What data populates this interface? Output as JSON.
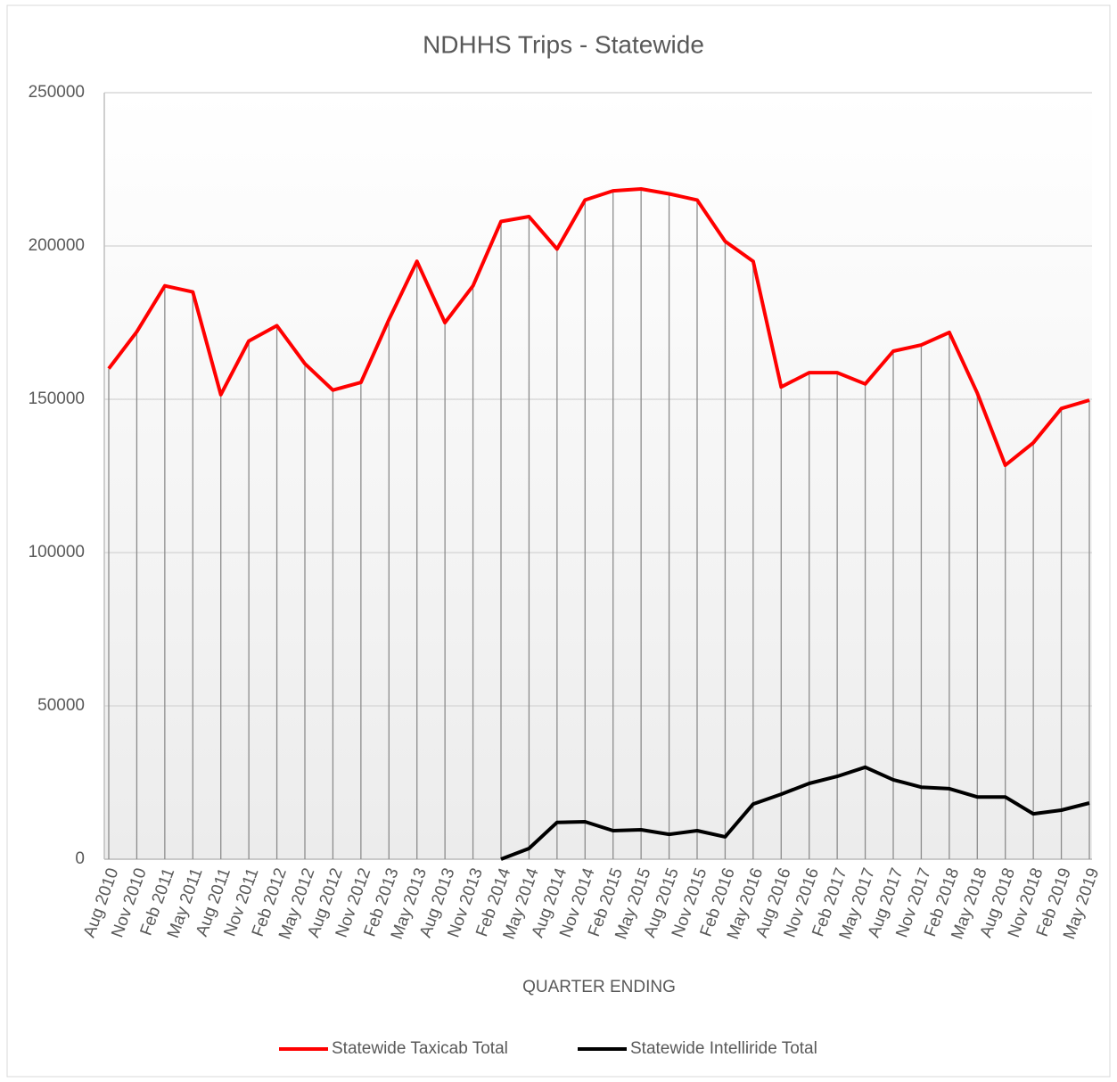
{
  "chart_data": {
    "type": "line",
    "title": "NDHHS Trips - Statewide",
    "x_label": "QUARTER ENDING",
    "categories": [
      "Aug 2010",
      "Nov 2010",
      "Feb 2011",
      "May 2011",
      "Aug 2011",
      "Nov 2011",
      "Feb 2012",
      "May 2012",
      "Aug 2012",
      "Nov 2012",
      "Feb 2013",
      "May 2013",
      "Aug 2013",
      "Nov 2013",
      "Feb 2014",
      "May 2014",
      "Aug 2014",
      "Nov 2014",
      "Feb 2015",
      "May 2015",
      "Aug 2015",
      "Nov 2015",
      "Feb 2016",
      "May 2016",
      "Aug 2016",
      "Nov 2016",
      "Feb 2017",
      "May 2017",
      "Aug 2017",
      "Nov 2017",
      "Feb 2018",
      "May 2018",
      "Aug 2018",
      "Nov 2018",
      "Feb 2019",
      "May 2019"
    ],
    "series": [
      {
        "name": "Statewide Taxicab Total",
        "color": "#ff0000",
        "values": [
          160000,
          172000,
          187000,
          185000,
          151500,
          169000,
          174000,
          161600,
          153000,
          155500,
          176000,
          195000,
          175000,
          187000,
          208000,
          209600,
          199000,
          215000,
          218000,
          218600,
          217000,
          215000,
          201500,
          195000,
          154000,
          158700,
          158700,
          155000,
          165700,
          167700,
          171800,
          152000,
          128500,
          135800,
          147000,
          149700
        ]
      },
      {
        "name": "Statewide Intelliride Total",
        "color": "#000000",
        "values": [
          null,
          null,
          null,
          null,
          null,
          null,
          null,
          null,
          null,
          null,
          null,
          null,
          null,
          null,
          0,
          3500,
          12000,
          12200,
          9300,
          9600,
          8100,
          9300,
          7300,
          18000,
          21200,
          24700,
          27000,
          30000,
          25900,
          23500,
          23000,
          20300,
          20300,
          14800,
          16000,
          18300
        ]
      }
    ],
    "ylim": [
      0,
      250000
    ],
    "yticks": [
      0,
      50000,
      100000,
      150000,
      200000,
      250000
    ],
    "grid": true,
    "drop_lines": true,
    "legend": "bottom"
  }
}
